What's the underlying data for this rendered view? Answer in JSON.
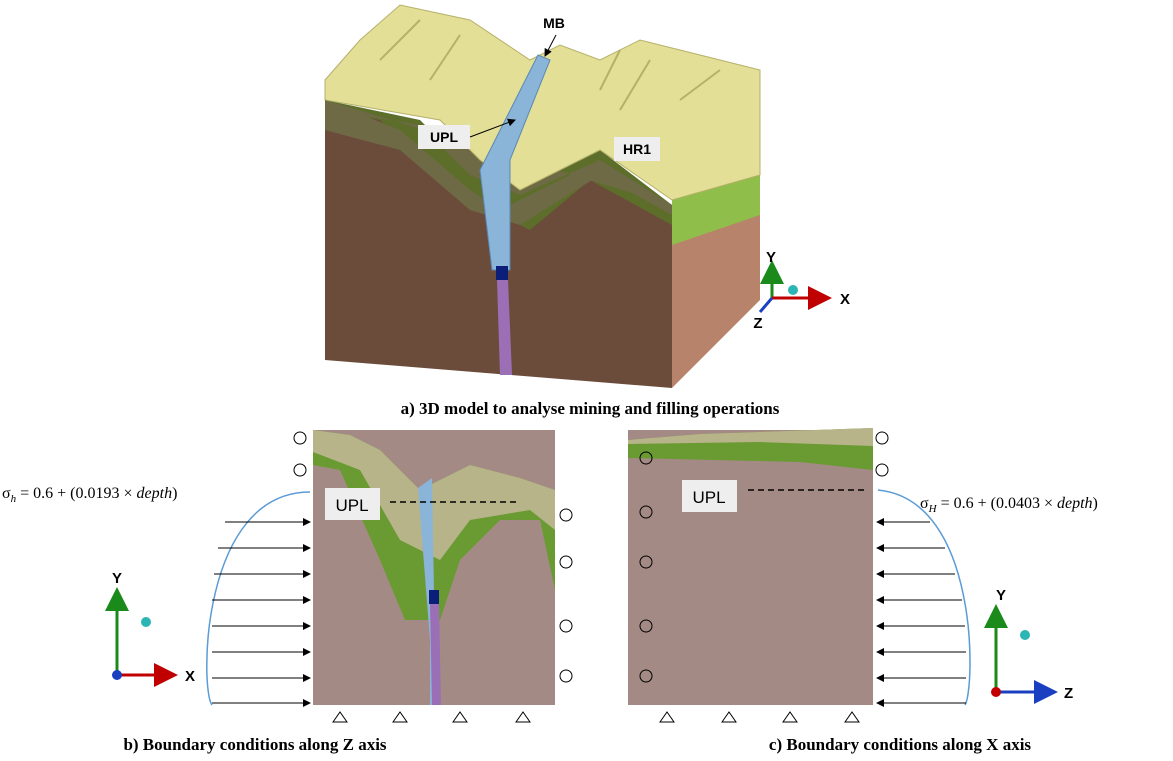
{
  "panel_a": {
    "labels": {
      "mb": "MB",
      "upl": "UPL",
      "hr1": "HR1"
    },
    "axes": {
      "y": "Y",
      "x": "X",
      "z": "Z"
    },
    "caption": "a) 3D model to analyse mining and filling operations"
  },
  "panel_b": {
    "upl": "UPL",
    "equation": {
      "symbol": "σ",
      "subscript": "h",
      "expression": " = 0.6 + (0.0193 × ",
      "variable": "depth",
      "close": ")"
    },
    "axes": {
      "y": "Y",
      "x": "X"
    },
    "caption": "b) Boundary conditions along Z axis"
  },
  "panel_c": {
    "upl": "UPL",
    "equation": {
      "symbol": "σ",
      "subscript": "H",
      "expression": " = 0.6 + (0.0403 × ",
      "variable": "depth",
      "close": ")"
    },
    "axes": {
      "y": "Y",
      "z": "Z"
    },
    "caption": "c) Boundary conditions along X axis"
  }
}
